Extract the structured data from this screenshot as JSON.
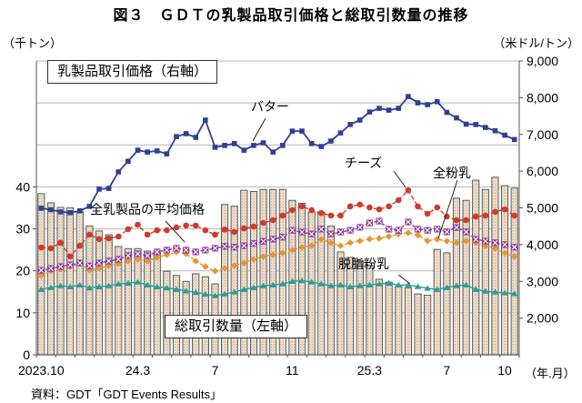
{
  "title": "図３　ＧＤＴの乳製品取引価格と総取引数量の推移",
  "source": "資料：GDT「GDT Events Results」",
  "labels": {
    "price_box": "乳製品取引価格（右軸）",
    "volume_box": "総取引数量（左軸）",
    "butter": "バター",
    "cheese": "チーズ",
    "wmp": "全粉乳",
    "avg": "全乳製品の平均価格",
    "smp": "脱脂粉乳"
  },
  "chart_data": {
    "type": "combo",
    "title": "図３　ＧＤＴの乳製品取引価格と総取引数量の推移",
    "grid": true,
    "left_axis": {
      "unit": "（千トン）",
      "label": "総取引数量（左軸）",
      "min": 0,
      "max": 70,
      "tick_labels": [
        "0",
        "10",
        "20",
        "30",
        "40"
      ],
      "tick_values": [
        0,
        10,
        20,
        30,
        40
      ]
    },
    "right_axis": {
      "unit": "（米ドル/トン）",
      "label": "乳製品取引価格（右軸）",
      "min": 1000,
      "max": 9000,
      "tick_labels": [
        "2,000",
        "3,000",
        "4,000",
        "5,000",
        "6,000",
        "7,000",
        "8,000",
        "9,000"
      ],
      "tick_values": [
        2000,
        3000,
        4000,
        5000,
        6000,
        7000,
        8000,
        9000
      ]
    },
    "x_axis": {
      "unit": "（年.月）",
      "ticks": [
        {
          "label": "2023.10",
          "slot": 0
        },
        {
          "label": "24.3",
          "slot": 10
        },
        {
          "label": "7",
          "slot": 18
        },
        {
          "label": "11",
          "slot": 26
        },
        {
          "label": "25.3",
          "slot": 34
        },
        {
          "label": "7",
          "slot": 42
        },
        {
          "label": "10",
          "slot": 48
        }
      ]
    },
    "categories": [
      "23.10-1",
      "23.10-2",
      "23.11-1",
      "23.11-2",
      "23.12-1",
      "23.12-2",
      "24.1-1",
      "24.1-2",
      "24.2-1",
      "24.2-2",
      "24.3-1",
      "24.3-2",
      "24.4-1",
      "24.4-2",
      "24.5-1",
      "24.5-2",
      "24.6-1",
      "24.6-2",
      "24.7-1",
      "24.7-2",
      "24.8-1",
      "24.8-2",
      "24.9-1",
      "24.9-2",
      "24.10-1",
      "24.10-2",
      "24.11-1",
      "24.11-2",
      "24.12-1",
      "24.12-2",
      "25.1-1",
      "25.1-2",
      "25.2-1",
      "25.2-2",
      "25.3-1",
      "25.3-2",
      "25.4-1",
      "25.4-2",
      "25.5-1",
      "25.5-2",
      "25.6-1",
      "25.6-2",
      "25.7-1",
      "25.7-2",
      "25.8-1",
      "25.8-2",
      "25.9-1",
      "25.9-2",
      "25.10-1",
      "25.10-2"
    ],
    "series": [
      {
        "name": "総取引数量",
        "type": "bar",
        "axis": "left",
        "unit": "千トン",
        "color": "#f1e5d5",
        "stroke": "#4d4d4d",
        "values": [
          38.4,
          36.2,
          35.1,
          35.0,
          34.1,
          30.7,
          29.5,
          28.6,
          25.8,
          25.3,
          25.3,
          24.7,
          24.4,
          19.9,
          18.9,
          17.5,
          19.3,
          18.6,
          16.9,
          35.8,
          35.4,
          39.2,
          38.9,
          39.4,
          39.4,
          39.4,
          36.8,
          36.1,
          34.0,
          34.0,
          30.7,
          24.5,
          23.2,
          22.4,
          21.3,
          18.0,
          17.3,
          16.3,
          16.0,
          14.5,
          14.2,
          25.1,
          24.3,
          37.3,
          36.8,
          41.6,
          39.4,
          42.3,
          40.3,
          39.7
        ]
      },
      {
        "name": "脱脂粉乳",
        "type": "line",
        "axis": "right",
        "unit": "米ドル/トン",
        "color": "#2a9d96",
        "marker": "triangle",
        "dash": "",
        "values": [
          2780,
          2830,
          2880,
          2850,
          2900,
          2820,
          2850,
          2880,
          2930,
          2950,
          2980,
          2900,
          2850,
          2820,
          2780,
          2740,
          2700,
          2650,
          2610,
          2655,
          2710,
          2780,
          2830,
          2880,
          2900,
          2930,
          3000,
          3020,
          2980,
          2930,
          2880,
          2900,
          2850,
          2880,
          2900,
          2930,
          2950,
          2900,
          2900,
          2855,
          2810,
          2780,
          2830,
          2880,
          2900,
          2780,
          2730,
          2710,
          2685,
          2660
        ]
      },
      {
        "name": "全粉乳",
        "type": "line",
        "axis": "right",
        "unit": "米ドル/トン",
        "color": "#e8952e",
        "marker": "diamond",
        "dash": "4,2",
        "values": [
          3160,
          3280,
          3330,
          3400,
          3480,
          3300,
          3350,
          3420,
          3480,
          3550,
          3600,
          3550,
          3650,
          3720,
          3800,
          3750,
          3550,
          3400,
          3280,
          3355,
          3430,
          3500,
          3600,
          3675,
          3725,
          3775,
          3850,
          3920,
          3970,
          4145,
          4050,
          3970,
          4050,
          4100,
          4150,
          4170,
          4220,
          4290,
          4320,
          4260,
          4100,
          4145,
          4095,
          4050,
          4095,
          4050,
          3970,
          3895,
          3770,
          3675
        ]
      },
      {
        "name": "全乳製品の平均価格",
        "type": "line",
        "axis": "right",
        "unit": "米ドル/トン",
        "color": "#8e3a96",
        "marker": "xsquare",
        "dash": "3,2",
        "values": [
          3300,
          3350,
          3400,
          3450,
          3500,
          3420,
          3500,
          3550,
          3600,
          3700,
          3750,
          3700,
          3800,
          3850,
          3900,
          3850,
          3800,
          3850,
          3900,
          3950,
          3930,
          3970,
          4030,
          4090,
          4150,
          4200,
          4390,
          4340,
          4290,
          4420,
          4290,
          4340,
          4390,
          4470,
          4590,
          4640,
          4420,
          4390,
          4615,
          4420,
          4390,
          4420,
          4345,
          4465,
          4345,
          4145,
          4095,
          4050,
          4000,
          3930
        ]
      },
      {
        "name": "チーズ",
        "type": "line",
        "axis": "right",
        "unit": "米ドル/トン",
        "color": "#d23a28",
        "marker": "circle",
        "dash": "5,2.5",
        "values": [
          3920,
          3900,
          4050,
          3680,
          3970,
          4270,
          4150,
          4170,
          4220,
          4420,
          4540,
          4270,
          4390,
          4390,
          4470,
          4520,
          4520,
          4390,
          4270,
          4410,
          4345,
          4440,
          4490,
          4590,
          4665,
          4790,
          4940,
          5040,
          4940,
          4860,
          4790,
          4790,
          5040,
          5090,
          5010,
          4960,
          5040,
          5210,
          5480,
          5040,
          4840,
          5010,
          4765,
          4665,
          4665,
          4765,
          4790,
          4890,
          4960,
          4790
        ]
      },
      {
        "name": "バター",
        "type": "line",
        "axis": "right",
        "unit": "米ドル/トン",
        "color": "#2e3f94",
        "marker": "square",
        "dash": "",
        "values": [
          4990,
          4950,
          4890,
          4870,
          4920,
          5040,
          5510,
          5530,
          5980,
          6270,
          6570,
          6520,
          6550,
          6470,
          6940,
          7020,
          6920,
          7390,
          6650,
          6700,
          6750,
          6570,
          6700,
          6770,
          6520,
          6700,
          7090,
          7090,
          6750,
          6670,
          6820,
          7040,
          7270,
          7390,
          7610,
          7710,
          7660,
          7710,
          8030,
          7860,
          7810,
          7890,
          7600,
          7450,
          7280,
          7270,
          7190,
          7100,
          6980,
          6860
        ]
      }
    ]
  }
}
